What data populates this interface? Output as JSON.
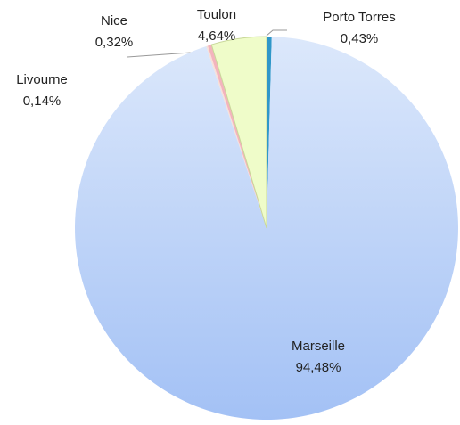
{
  "chart_data": {
    "type": "pie",
    "categories": [
      "Porto Torres",
      "Marseille",
      "Livourne",
      "Nice",
      "Toulon"
    ],
    "values": [
      0.43,
      94.48,
      0.14,
      0.32,
      4.64
    ],
    "value_labels": [
      "0,43%",
      "94,48%",
      "0,14%",
      "0,32%",
      "4,64%"
    ],
    "colors": [
      "#2f97c9",
      "#b7cff8",
      "#f7e0d8",
      "#f3b4bd",
      "#effcc9"
    ]
  }
}
